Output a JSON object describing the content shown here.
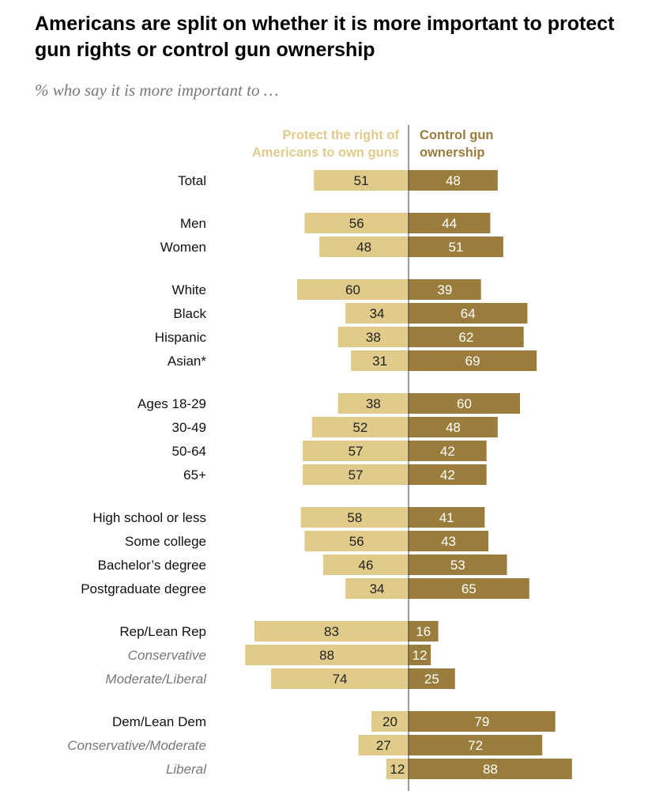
{
  "title": "Americans are split on whether it is more important to protect gun rights or control gun ownership",
  "subtitle": "% who say it is more important to …",
  "colors": {
    "protect": "#e0cb8b",
    "control": "#9a7d3c"
  },
  "chart_data": {
    "type": "bar",
    "orientation": "diverging-horizontal",
    "series": [
      {
        "name": "Protect the right of Americans to own guns",
        "values": [
          51,
          56,
          48,
          60,
          34,
          38,
          31,
          38,
          52,
          57,
          57,
          58,
          56,
          46,
          34,
          83,
          88,
          74,
          20,
          27,
          12
        ]
      },
      {
        "name": "Control gun ownership",
        "values": [
          48,
          44,
          51,
          39,
          64,
          62,
          69,
          60,
          48,
          42,
          42,
          41,
          43,
          53,
          65,
          16,
          12,
          25,
          79,
          72,
          88
        ]
      }
    ],
    "categories": [
      "Total",
      "Men",
      "Women",
      "White",
      "Black",
      "Hispanic",
      "Asian*",
      "Ages 18-29",
      "30-49",
      "50-64",
      "65+",
      "High school or less",
      "Some college",
      "Bachelor’s degree",
      "Postgraduate degree",
      "Rep/Lean Rep",
      "Conservative",
      "Moderate/Liberal",
      "Dem/Lean Dem",
      "Conservative/Moderate",
      "Liberal"
    ],
    "italic_categories": [
      "Conservative",
      "Moderate/Liberal",
      "Conservative/Moderate",
      "Liberal"
    ],
    "groups": [
      [
        0
      ],
      [
        1,
        2
      ],
      [
        3,
        4,
        5,
        6
      ],
      [
        7,
        8,
        9,
        10
      ],
      [
        11,
        12,
        13,
        14
      ],
      [
        15,
        16,
        17
      ],
      [
        18,
        19,
        20
      ]
    ],
    "legend": {
      "left": "Protect the right of Americans to own guns",
      "right": "Control gun ownership"
    }
  }
}
